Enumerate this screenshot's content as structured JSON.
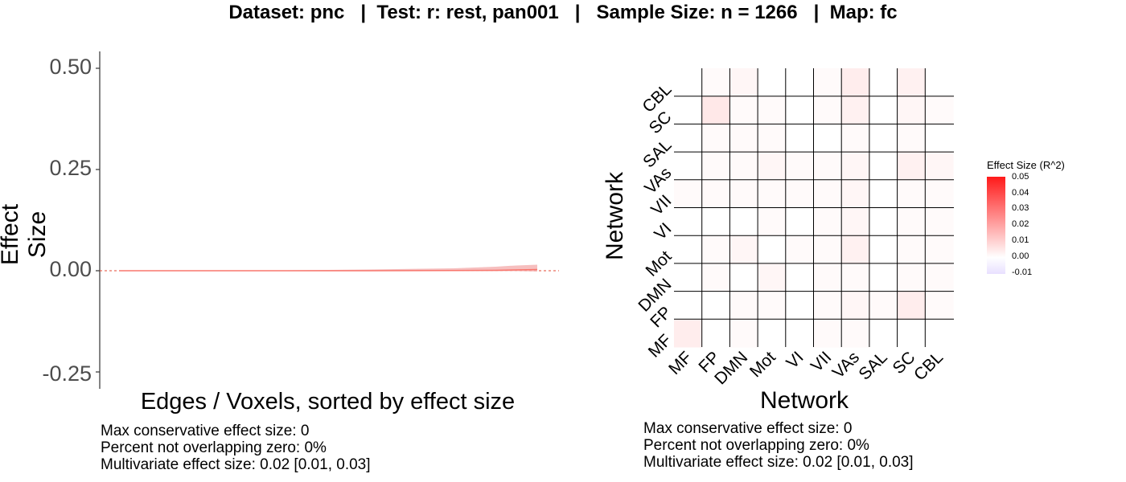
{
  "title": "Dataset: pnc   |  Test: r: rest, pan001   |   Sample Size: n = 1266   |  Map: fc",
  "left_plot": {
    "ylabel": "Effect Size",
    "xlabel": "Edges / Voxels, sorted by effect size",
    "stats": [
      "Max conservative effect size: 0",
      "Percent not overlapping zero: 0%",
      "Multivariate effect size: 0.02 [0.01, 0.03]"
    ]
  },
  "right_plot": {
    "xlabel": "Network",
    "ylabel": "Network",
    "legend_title": "Effect Size (R^2)",
    "legend_ticks": [
      "0.05",
      "0.04",
      "0.03",
      "0.02",
      "0.01",
      "0.00",
      "-0.01"
    ],
    "stats": [
      "Max conservative effect size: 0",
      "Percent not overlapping zero: 0%",
      "Multivariate effect size: 0.02 [0.01, 0.03]"
    ]
  },
  "colors": {
    "line": "#f8766d",
    "band": "#f4b4b4",
    "zero": "#e34a33",
    "high": "#ff1a1a",
    "low": "#e8e0ff"
  },
  "chart_data": [
    {
      "type": "area",
      "title": "",
      "xlabel": "Edges / Voxels, sorted by effect size",
      "ylabel": "Effect Size",
      "ylim": [
        -0.27,
        0.53
      ],
      "yticks": [
        0.5,
        0.25,
        0.0,
        -0.25
      ],
      "ytick_labels": [
        "0.50",
        "0.25",
        "0.00",
        "-0.25"
      ],
      "x": [
        0,
        0.2,
        0.4,
        0.6,
        0.8,
        0.9,
        0.95,
        1.0
      ],
      "estimate": [
        0.0,
        0.0,
        0.0,
        0.0,
        0.0005,
        0.001,
        0.002,
        0.003
      ],
      "upper": [
        0.0,
        0.0005,
        0.001,
        0.003,
        0.006,
        0.01,
        0.013,
        0.015
      ],
      "lower": [
        0.0,
        0.0,
        -0.0005,
        -0.001,
        -0.001,
        -0.001,
        -0.001,
        -0.002
      ],
      "reference_line": 0
    },
    {
      "type": "heatmap",
      "xlabel": "Network",
      "ylabel": "Network",
      "networks": [
        "MF",
        "FP",
        "DMN",
        "Mot",
        "VI",
        "VII",
        "VAs",
        "SAL",
        "SC",
        "CBL"
      ],
      "color_range": [
        -0.01,
        0.05
      ],
      "values": [
        [
          0.004,
          0.0,
          0.001,
          0.0,
          0.0,
          0.001,
          0.001,
          0.0,
          0.0,
          0.0
        ],
        [
          0.0,
          0.0,
          0.001,
          0.001,
          0.0,
          0.001,
          0.002,
          0.001,
          0.004,
          0.001
        ],
        [
          0.0,
          0.001,
          0.0,
          0.002,
          0.0,
          0.001,
          0.001,
          0.0,
          0.001,
          0.001
        ],
        [
          0.0,
          0.001,
          0.002,
          0.0,
          0.001,
          0.001,
          0.003,
          0.0,
          0.001,
          0.001
        ],
        [
          0.0,
          0.0,
          0.0,
          0.001,
          0.0,
          0.001,
          0.002,
          0.0,
          0.001,
          0.001
        ],
        [
          0.001,
          0.001,
          0.001,
          0.001,
          0.001,
          0.001,
          0.002,
          0.0,
          0.001,
          0.001
        ],
        [
          0.0,
          0.001,
          0.001,
          0.002,
          0.001,
          0.001,
          0.002,
          0.0,
          0.003,
          0.002
        ],
        [
          0.0,
          0.001,
          0.001,
          0.001,
          0.0,
          0.0,
          0.001,
          0.0,
          0.001,
          0.0
        ],
        [
          0.0,
          0.005,
          0.001,
          0.001,
          0.0,
          0.001,
          0.003,
          0.0,
          0.002,
          0.001
        ],
        [
          0.0,
          0.001,
          0.002,
          0.0,
          0.0,
          0.001,
          0.004,
          0.0,
          0.003,
          0.0
        ]
      ]
    }
  ]
}
